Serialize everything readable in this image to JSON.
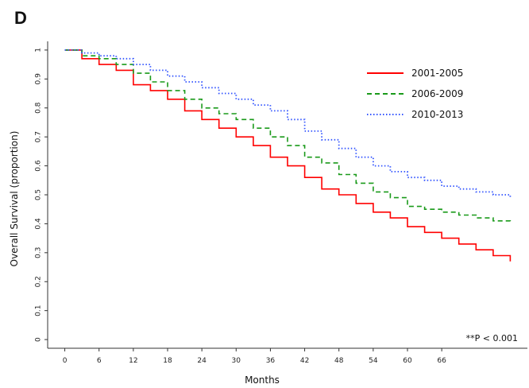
{
  "figure": {
    "panel_label": "D"
  },
  "chart_data": {
    "type": "line",
    "title": "",
    "xlabel": "Months",
    "ylabel": "Overall Survival (proportion)",
    "xlim": [
      -3,
      81
    ],
    "ylim": [
      -0.03,
      1.03
    ],
    "xticks": [
      0,
      6,
      12,
      18,
      24,
      30,
      36,
      42,
      48,
      54,
      60,
      66
    ],
    "yticks": [
      0,
      0.1,
      0.2,
      0.3,
      0.4,
      0.5,
      0.6,
      0.7,
      0.8,
      0.9,
      1
    ],
    "ytick_labels": [
      "0",
      "0.1",
      "0.2",
      "0.3",
      "0.4",
      "0.5",
      "0.6",
      "0.7",
      "0.8",
      "0.9",
      "1"
    ],
    "grid": false,
    "legend_position": "top-right",
    "annotation": "**P < 0.001",
    "series": [
      {
        "name": "2001-2005",
        "color": "#ff0000",
        "dash": "solid",
        "x": [
          0,
          3,
          6,
          9,
          12,
          15,
          18,
          21,
          24,
          27,
          30,
          33,
          36,
          39,
          42,
          45,
          48,
          51,
          54,
          57,
          60,
          63,
          66,
          69,
          72,
          75,
          78
        ],
        "y": [
          1.0,
          0.97,
          0.95,
          0.93,
          0.88,
          0.86,
          0.83,
          0.79,
          0.76,
          0.73,
          0.7,
          0.67,
          0.63,
          0.6,
          0.56,
          0.52,
          0.5,
          0.47,
          0.44,
          0.42,
          0.39,
          0.37,
          0.35,
          0.33,
          0.31,
          0.29,
          0.27
        ]
      },
      {
        "name": "2006-2009",
        "color": "#1a9a1a",
        "dash": "dashed",
        "x": [
          0,
          3,
          6,
          9,
          12,
          15,
          18,
          21,
          24,
          27,
          30,
          33,
          36,
          39,
          42,
          45,
          48,
          51,
          54,
          57,
          60,
          63,
          66,
          69,
          72,
          75,
          78
        ],
        "y": [
          1.0,
          0.98,
          0.97,
          0.95,
          0.92,
          0.89,
          0.86,
          0.83,
          0.8,
          0.78,
          0.76,
          0.73,
          0.7,
          0.67,
          0.63,
          0.61,
          0.57,
          0.54,
          0.51,
          0.49,
          0.46,
          0.45,
          0.44,
          0.43,
          0.42,
          0.41,
          0.4
        ]
      },
      {
        "name": "2010-2013",
        "color": "#3355ff",
        "dash": "dotted",
        "x": [
          0,
          3,
          6,
          9,
          12,
          15,
          18,
          21,
          24,
          27,
          30,
          33,
          36,
          39,
          42,
          45,
          48,
          51,
          54,
          57,
          60,
          63,
          66,
          69,
          72,
          75,
          78
        ],
        "y": [
          1.0,
          0.99,
          0.98,
          0.97,
          0.95,
          0.93,
          0.91,
          0.89,
          0.87,
          0.85,
          0.83,
          0.81,
          0.79,
          0.76,
          0.72,
          0.69,
          0.66,
          0.63,
          0.6,
          0.58,
          0.56,
          0.55,
          0.53,
          0.52,
          0.51,
          0.5,
          0.49
        ]
      }
    ]
  }
}
